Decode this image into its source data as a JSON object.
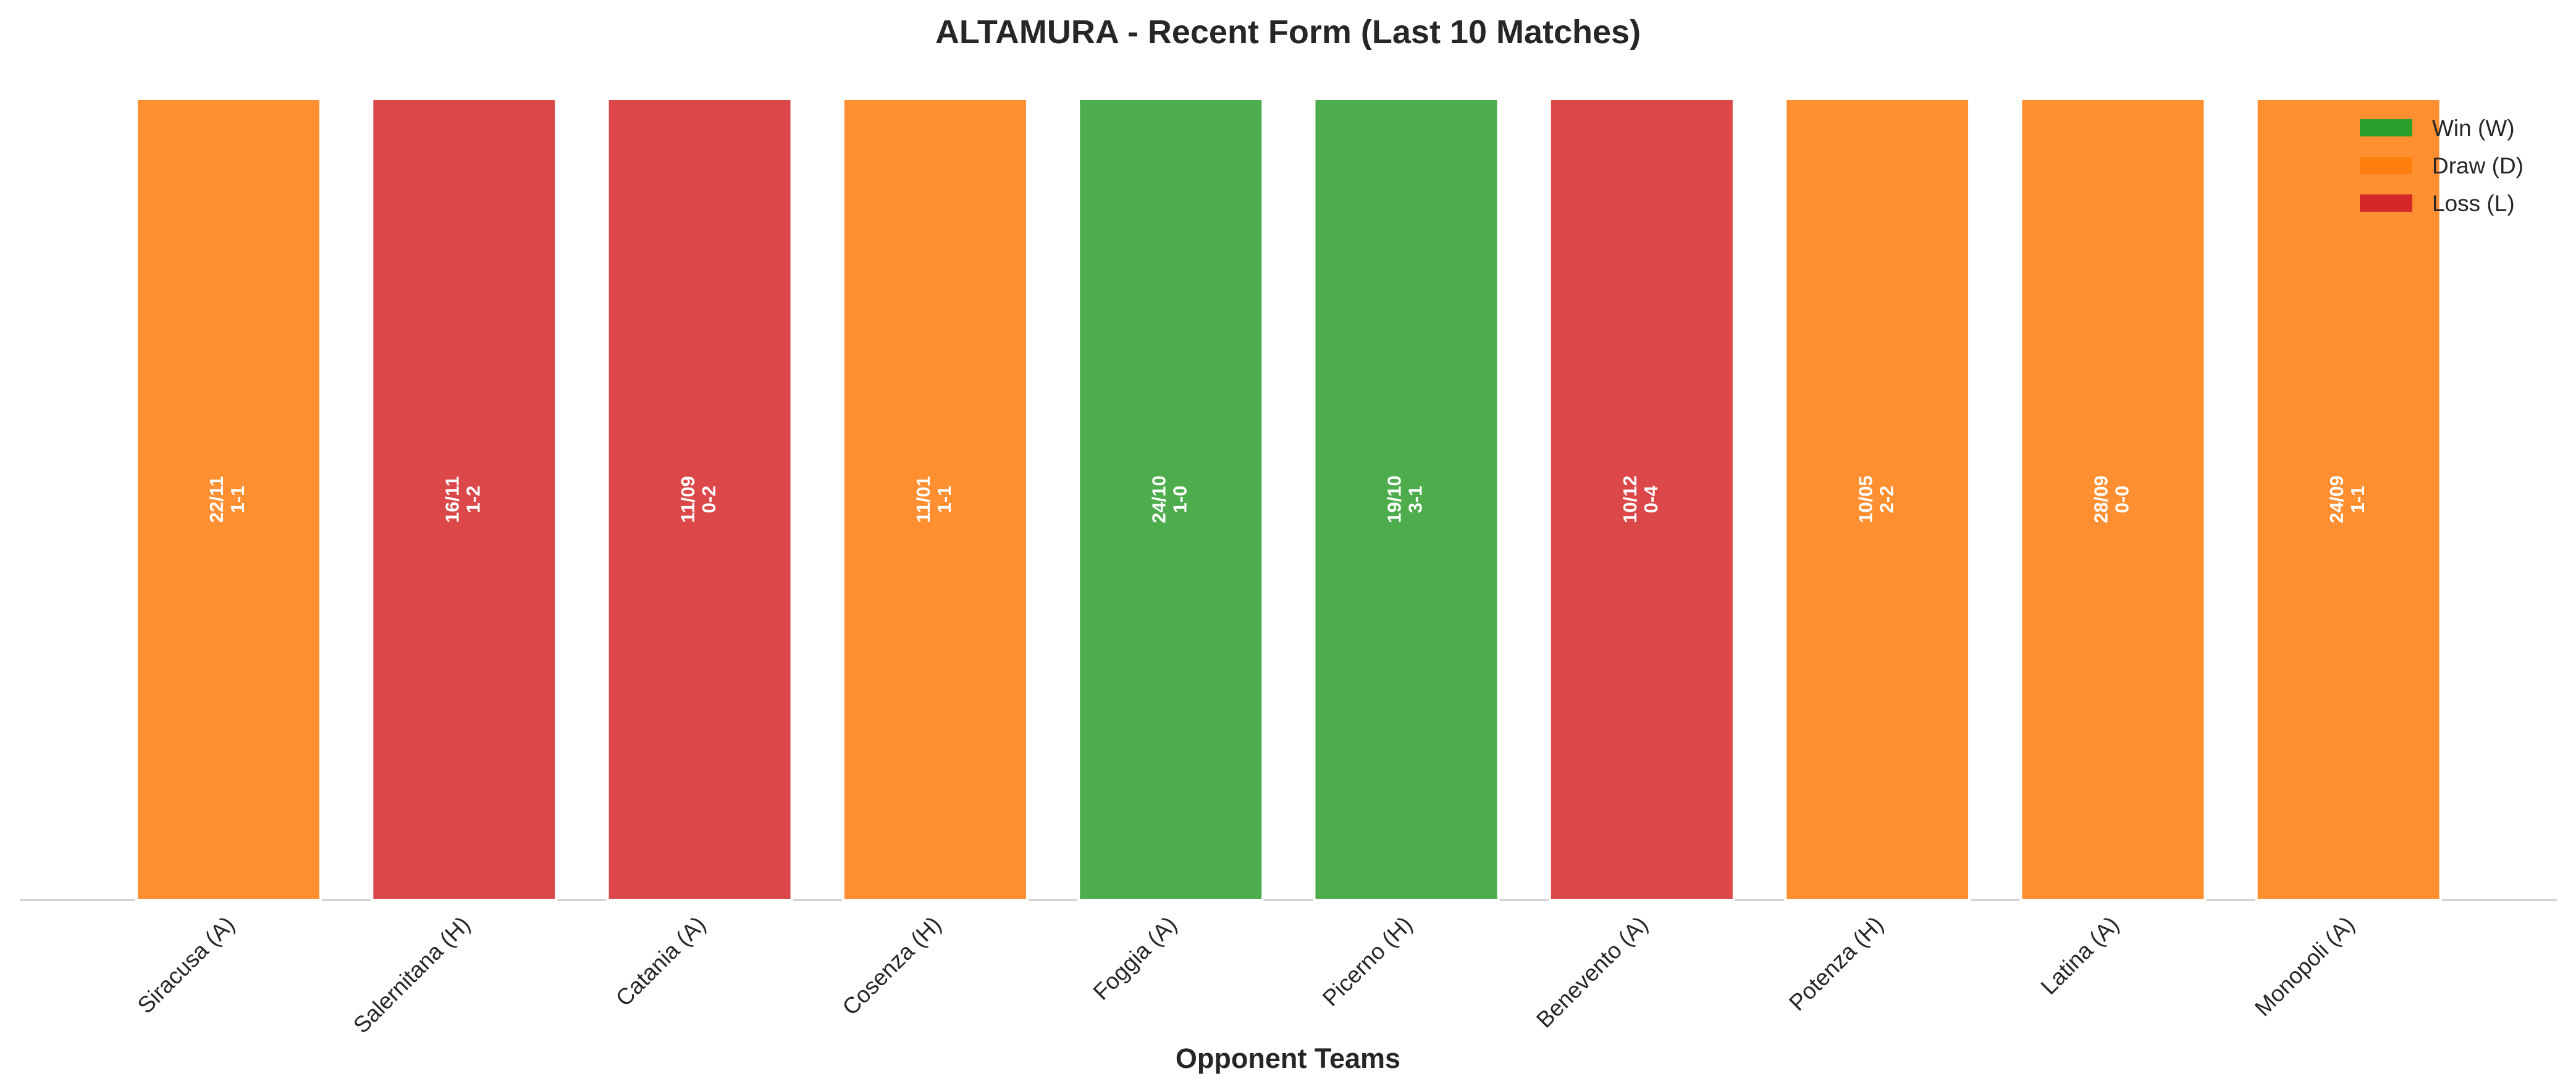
{
  "chart_data": {
    "type": "bar",
    "title": "ALTAMURA - Recent Form (Last 10 Matches)",
    "x_label": "Opponent Teams",
    "categories": [
      "Siracusa (A)",
      "Salernitana (H)",
      "Catania (A)",
      "Cosenza (H)",
      "Foggia (A)",
      "Picerno (H)",
      "Benevento (A)",
      "Potenza (H)",
      "Latina (A)",
      "Monopoli (A)"
    ],
    "values": [
      1,
      1,
      1,
      1,
      1,
      1,
      1,
      1,
      1,
      1
    ],
    "colors": [
      "#ff8f30",
      "#dc4849",
      "#dc4849",
      "#ff8f30",
      "#4dad4d",
      "#4dad4d",
      "#dc4849",
      "#ff8f30",
      "#ff8f30",
      "#ff8f30"
    ],
    "dates": [
      "22/11",
      "16/11",
      "11/09",
      "11/01",
      "24/10",
      "19/10",
      "10/12",
      "10/05",
      "28/09",
      "24/09"
    ],
    "scores": [
      "1-1",
      "1-2",
      "0-2",
      "1-1",
      "1-0",
      "3-1",
      "0-4",
      "2-2",
      "0-0",
      "1-1"
    ],
    "ylim": [
      0,
      1
    ],
    "legend": [
      {
        "name": "Win (W)",
        "color": "#2ca02c"
      },
      {
        "name": "Draw (D)",
        "color": "#ff7f0e"
      },
      {
        "name": "Loss (L)",
        "color": "#d62728"
      }
    ],
    "legend_position": "upper right"
  }
}
